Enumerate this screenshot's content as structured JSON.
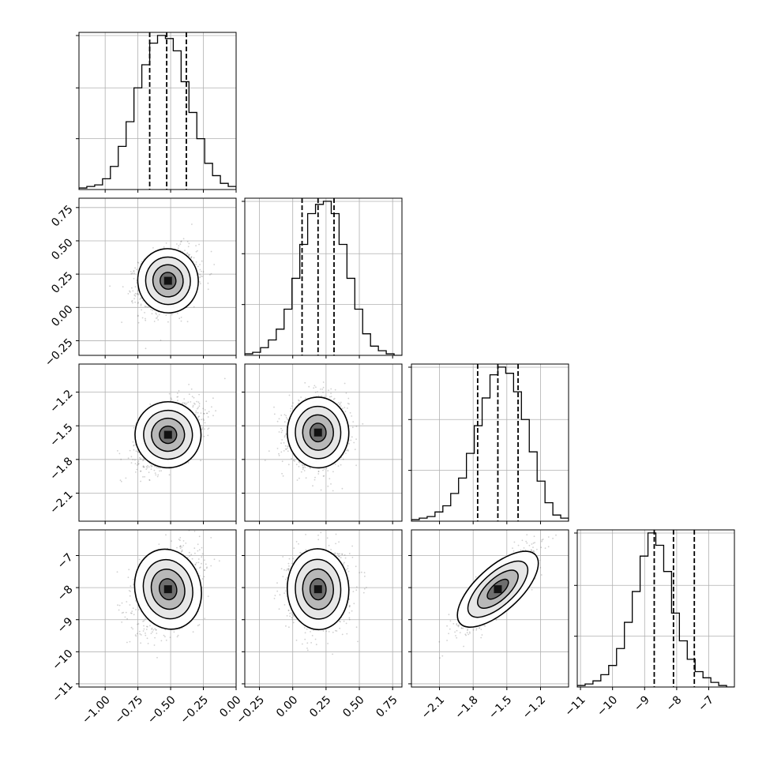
{
  "chart_data": {
    "type": "corner",
    "title": "",
    "parameters": [
      {
        "ticks": [
          -1.0,
          -0.75,
          -0.5,
          -0.25,
          0.0
        ],
        "tick_labels": [
          "−1.00",
          "−0.75",
          "−0.50",
          "−0.25",
          "0.00"
        ],
        "range": [
          -1.2,
          0.0
        ],
        "quantiles": [
          -0.66,
          -0.53,
          -0.38
        ],
        "histogram": [
          1,
          2,
          3,
          7,
          15,
          28,
          44,
          66,
          81,
          95,
          100,
          98,
          90,
          70,
          50,
          33,
          17,
          9,
          4,
          2
        ]
      },
      {
        "ticks": [
          -0.25,
          0.0,
          0.25,
          0.5,
          0.75
        ],
        "tick_labels": [
          "−0.25",
          "0.00",
          "0.25",
          "0.50",
          "0.75"
        ],
        "range": [
          -0.36,
          0.82
        ],
        "quantiles": [
          0.07,
          0.19,
          0.31
        ],
        "histogram": [
          1,
          2,
          5,
          10,
          17,
          30,
          50,
          72,
          92,
          98,
          100,
          92,
          72,
          50,
          30,
          14,
          6,
          3,
          1,
          0
        ]
      },
      {
        "ticks": [
          -2.1,
          -1.8,
          -1.5,
          -1.2
        ],
        "tick_labels": [
          "−2.1",
          "−1.8",
          "−1.5",
          "−1.2"
        ],
        "range": [
          -2.35,
          -0.95
        ],
        "quantiles": [
          -1.76,
          -1.58,
          -1.4
        ],
        "histogram": [
          1,
          2,
          3,
          6,
          10,
          18,
          28,
          44,
          62,
          80,
          95,
          100,
          96,
          84,
          66,
          45,
          26,
          12,
          4,
          2
        ]
      },
      {
        "ticks": [
          -11,
          -10,
          -9,
          -8,
          -7
        ],
        "tick_labels": [
          "−11",
          "−10",
          "−9",
          "−8",
          "−7"
        ],
        "range": [
          -11.1,
          -6.2
        ],
        "quantiles": [
          -8.7,
          -8.1,
          -7.45
        ],
        "histogram": [
          1,
          2,
          4,
          8,
          14,
          25,
          42,
          62,
          85,
          100,
          92,
          75,
          48,
          30,
          18,
          10,
          6,
          3,
          1,
          0
        ]
      }
    ],
    "pairs": [
      {
        "row": 1,
        "col": 0,
        "mean": [
          -0.52,
          0.2
        ],
        "sd": [
          0.11,
          0.115
        ],
        "corr": 0.2
      },
      {
        "row": 2,
        "col": 0,
        "mean": [
          -0.52,
          -1.58
        ],
        "sd": [
          0.12,
          0.14
        ],
        "corr": 0.45
      },
      {
        "row": 2,
        "col": 1,
        "mean": [
          0.19,
          -1.56
        ],
        "sd": [
          0.11,
          0.15
        ],
        "corr": 0.05
      },
      {
        "row": 3,
        "col": 0,
        "mean": [
          -0.52,
          -8.05
        ],
        "sd": [
          0.12,
          0.6
        ],
        "corr": 0.35
      },
      {
        "row": 3,
        "col": 1,
        "mean": [
          0.19,
          -8.05
        ],
        "sd": [
          0.11,
          0.6
        ],
        "corr": 0.05
      },
      {
        "row": 3,
        "col": 2,
        "mean": [
          -1.58,
          -8.05
        ],
        "sd": [
          0.16,
          0.6
        ],
        "corr": 0.85
      }
    ],
    "grid": true,
    "xlabel": "",
    "ylabel": ""
  }
}
